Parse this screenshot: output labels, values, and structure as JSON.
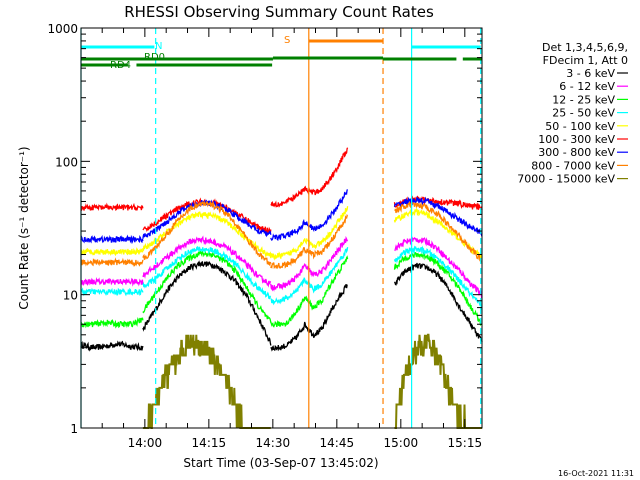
{
  "chart_data": {
    "type": "line",
    "title": "RHESSI Observing Summary Count Rates",
    "xlabel": "Start Time (03-Sep-07 13:45:02)",
    "ylabel": "Count Rate (s⁻¹ detector⁻¹)",
    "yscale": "log",
    "ylim": [
      1,
      1000
    ],
    "xlim_minutes": [
      0,
      94
    ],
    "y_tick_labels": [
      "1",
      "10",
      "100",
      "1000"
    ],
    "x_ticks": [
      {
        "label": "14:00",
        "minute": 14.97
      },
      {
        "label": "14:15",
        "minute": 29.97
      },
      {
        "label": "14:30",
        "minute": 44.97
      },
      {
        "label": "14:45",
        "minute": 59.97
      },
      {
        "label": "15:00",
        "minute": 74.97
      },
      {
        "label": "15:15",
        "minute": 89.97
      }
    ],
    "legend_header": [
      "Det 1,3,4,5,6,9,",
      "FDecim 1, Att 0"
    ],
    "legend_placement": "right",
    "series": [
      {
        "name": "3 - 6 keV",
        "color": "#000000",
        "segments": [
          {
            "start": 0,
            "end": 14.5,
            "values": [
              4.2,
              4.0,
              4.1,
              4.3,
              4.1,
              4.0
            ]
          },
          {
            "start": 14.5,
            "end": 44.5,
            "values": [
              5.5,
              7.5,
              10.5,
              13.5,
              16,
              17.2,
              16.8,
              15,
              12.5,
              9.5,
              6.5,
              4.3
            ]
          },
          {
            "start": 44.5,
            "end": 62.5,
            "values": [
              4.0,
              4.0,
              4.2,
              4.8,
              6.0,
              5.0,
              5.5,
              7.5,
              9.5,
              12.0
            ]
          },
          {
            "start": 73.5,
            "end": 94,
            "values": [
              12.0,
              15.0,
              16.5,
              16.0,
              14.0,
              11.0,
              8.0,
              6.0,
              4.5
            ]
          }
        ]
      },
      {
        "name": "6 - 12 keV",
        "color": "#ff00ff",
        "segments": [
          {
            "start": 0,
            "end": 14.5,
            "values": [
              12.5,
              12.5,
              12.5,
              12.5,
              12.5,
              12.5
            ]
          },
          {
            "start": 14.5,
            "end": 44.5,
            "values": [
              14,
              16,
              19,
              22,
              25,
              26,
              25,
              23,
              20,
              16.5,
              13.5,
              12
            ]
          },
          {
            "start": 44.5,
            "end": 62.5,
            "values": [
              11.5,
              11.5,
              12,
              13.5,
              16.5,
              14,
              15,
              18,
              22,
              27
            ]
          },
          {
            "start": 73.5,
            "end": 94,
            "values": [
              22,
              25,
              26,
              25,
              22,
              18,
              15,
              12,
              10
            ]
          }
        ]
      },
      {
        "name": "12 - 25 keV",
        "color": "#00ff00",
        "segments": [
          {
            "start": 0,
            "end": 14.5,
            "values": [
              6.0,
              6.0,
              6.2,
              6.0,
              6.0,
              6.5
            ]
          },
          {
            "start": 14.5,
            "end": 44.5,
            "values": [
              7.5,
              10,
              13,
              16.5,
              19,
              20.5,
              20,
              18,
              15,
              11,
              8,
              6.2
            ]
          },
          {
            "start": 44.5,
            "end": 62.5,
            "values": [
              6.0,
              6.0,
              6.2,
              7.5,
              9.5,
              8,
              9,
              12,
              15,
              19
            ]
          },
          {
            "start": 73.5,
            "end": 94,
            "values": [
              16,
              19,
              20,
              19.5,
              17,
              14,
              11,
              8,
              6
            ]
          }
        ]
      },
      {
        "name": "25 - 50 keV",
        "color": "#00ffff",
        "segments": [
          {
            "start": 0,
            "end": 14.5,
            "values": [
              10.5,
              10.5,
              10.5,
              10.5,
              10.5,
              10.5
            ]
          },
          {
            "start": 14.5,
            "end": 44.5,
            "values": [
              11.5,
              13,
              15.5,
              18.5,
              21,
              22,
              21.5,
              19.5,
              17,
              13.5,
              11,
              9.5
            ]
          },
          {
            "start": 44.5,
            "end": 62.5,
            "values": [
              9.0,
              9.0,
              9.5,
              10.5,
              13,
              11,
              12,
              14.5,
              18,
              22
            ]
          },
          {
            "start": 73.5,
            "end": 94,
            "values": [
              18,
              21,
              22,
              21,
              18.5,
              15.5,
              12.5,
              10,
              8
            ]
          }
        ]
      },
      {
        "name": "50 - 100 keV",
        "color": "#ffff00",
        "segments": [
          {
            "start": 0,
            "end": 14.5,
            "values": [
              21,
              21,
              21,
              21,
              21,
              21
            ]
          },
          {
            "start": 14.5,
            "end": 44.5,
            "values": [
              22,
              25,
              29,
              34,
              38,
              40,
              39,
              36,
              31,
              26,
              22,
              19.5
            ]
          },
          {
            "start": 44.5,
            "end": 62.5,
            "values": [
              19.5,
              19.5,
              20,
              22,
              26,
              23,
              24.5,
              29,
              36,
              45
            ]
          },
          {
            "start": 73.5,
            "end": 94,
            "values": [
              36,
              40,
              42,
              40,
              35,
              30,
              26,
              22,
              19
            ]
          }
        ]
      },
      {
        "name": "100 - 300 keV",
        "color": "#ff0000",
        "segments": [
          {
            "start": 0,
            "end": 14.5,
            "values": [
              45,
              45,
              45,
              45,
              45,
              45
            ]
          },
          {
            "start": 14.5,
            "end": 44.5,
            "values": [
              30,
              34,
              39,
              44,
              48,
              50,
              49,
              46,
              41,
              36,
              32,
              30
            ]
          },
          {
            "start": 44.5,
            "end": 62.5,
            "values": [
              48,
              48,
              50,
              55,
              62,
              58,
              62,
              75,
              95,
              125
            ]
          },
          {
            "start": 73.5,
            "end": 94,
            "values": [
              47,
              50,
              52,
              51,
              50,
              49,
              48,
              46,
              45
            ]
          }
        ]
      },
      {
        "name": "300 - 800 keV",
        "color": "#0000ff",
        "segments": [
          {
            "start": 0,
            "end": 14.5,
            "values": [
              26,
              26,
              26,
              26,
              26,
              26
            ]
          },
          {
            "start": 14.5,
            "end": 44.5,
            "values": [
              27,
              30,
              35,
              41,
              46,
              49,
              48,
              45,
              39,
              34,
              30,
              28
            ]
          },
          {
            "start": 44.5,
            "end": 62.5,
            "values": [
              27,
              27,
              28,
              30,
              35,
              31,
              33,
              39,
              48,
              60
            ]
          },
          {
            "start": 73.5,
            "end": 94,
            "values": [
              46,
              50,
              51,
              50,
              46,
              41,
              36,
              32,
              29
            ]
          }
        ]
      },
      {
        "name": "800 - 7000 keV",
        "color": "#ff8000",
        "segments": [
          {
            "start": 0,
            "end": 14.5,
            "values": [
              17.5,
              17.5,
              17.5,
              17.5,
              17.5,
              17.5
            ]
          },
          {
            "start": 14.5,
            "end": 44.5,
            "values": [
              18.5,
              22,
              28,
              36,
              44,
              48,
              47,
              42,
              34,
              26,
              20,
              17
            ]
          },
          {
            "start": 44.5,
            "end": 62.5,
            "values": [
              16.5,
              16.5,
              17,
              18.5,
              22,
              20,
              21,
              25,
              31,
              40
            ]
          },
          {
            "start": 73.5,
            "end": 94,
            "values": [
              42,
              46,
              47,
              45,
              40,
              33,
              27,
              22,
              18
            ]
          }
        ]
      },
      {
        "name": "7000 - 15000 keV",
        "color": "#808000",
        "segments": [
          {
            "start": 14.5,
            "end": 44.5,
            "values": [
              1.0,
              1.5,
              2.5,
              3.5,
              4.5,
              4.0,
              3.5,
              2.5,
              1.5,
              1.0,
              1.0,
              1.0
            ]
          },
          {
            "start": 73.5,
            "end": 94,
            "values": [
              1.0,
              2.5,
              4.0,
              4.5,
              3.5,
              2.0,
              1.2,
              1.0,
              1.0
            ]
          }
        ]
      }
    ],
    "flags": [
      {
        "label": "N",
        "color": "#00ffff",
        "segments": [
          [
            0,
            17.2
          ],
          [
            77.5,
            93.7
          ]
        ],
        "level": 680
      },
      {
        "label": "S",
        "color": "#ff8000",
        "segments": [
          [
            53.4,
            70.8
          ]
        ],
        "level": 790
      },
      {
        "label": "RD0",
        "color": "#008000",
        "segments": [
          [
            0,
            45
          ],
          [
            70.8,
            88
          ],
          [
            89.5,
            94
          ]
        ],
        "level": 570
      },
      {
        "label": "RD4",
        "color": "#008000",
        "segments": [
          [
            0,
            11
          ],
          [
            13,
            44.8
          ]
        ],
        "level": 540
      }
    ],
    "flag_offset_segments": [
      [
        45,
        70.8
      ]
    ],
    "boundaries": [
      {
        "minute": 0,
        "color": "#00ffff",
        "dashed": false
      },
      {
        "minute": 17.5,
        "color": "#00ffff",
        "dashed": true
      },
      {
        "minute": 53.4,
        "color": "#ff8000",
        "dashed": false
      },
      {
        "minute": 70.8,
        "color": "#ff8000",
        "dashed": true
      },
      {
        "minute": 77.5,
        "color": "#00ffff",
        "dashed": false
      },
      {
        "minute": 93.7,
        "color": "#00ffff",
        "dashed": true
      }
    ],
    "footer_date": "16-Oct-2021 11:31"
  }
}
